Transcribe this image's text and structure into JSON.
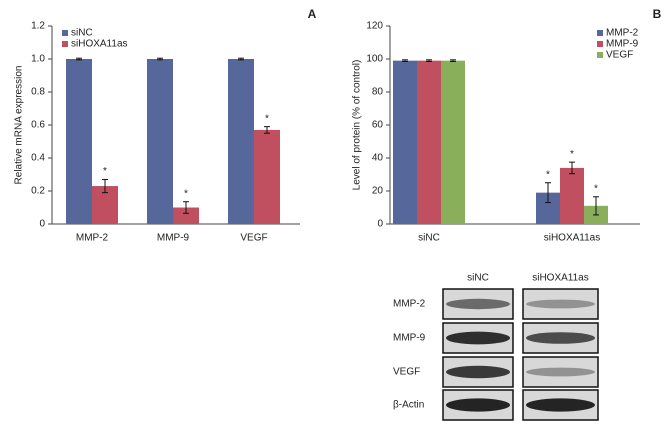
{
  "chart_data": [
    {
      "type": "bar",
      "panel": "A",
      "ylabel": "Relative mRNA expression",
      "categories": [
        "MMP-2",
        "MMP-9",
        "VEGF"
      ],
      "series": [
        {
          "name": "siNC",
          "color": "#56679b",
          "values": [
            1,
            1,
            1
          ],
          "errors": [
            0.005,
            0.005,
            0.005
          ]
        },
        {
          "name": "siHOXA11as",
          "color": "#c0505f",
          "values": [
            0.23,
            0.1,
            0.57
          ],
          "errors": [
            0.04,
            0.035,
            0.02
          ],
          "annotations": [
            "*",
            "*",
            "*"
          ]
        }
      ],
      "ylim": [
        0,
        1.2
      ],
      "yticks": [
        0,
        0.2,
        0.4,
        0.6,
        0.8,
        {
          "value": 1,
          "label": "1.0"
        },
        1.2
      ],
      "legend": "upper left",
      "grid": false
    },
    {
      "type": "bar",
      "panel": "B",
      "ylabel": "Level of protein (% of control)",
      "categories": [
        "siNC",
        "siHOXA11as"
      ],
      "series": [
        {
          "name": "MMP-2",
          "color": "#56679b",
          "values": [
            99,
            19
          ],
          "errors": [
            0.5,
            6
          ],
          "annotations": [
            null,
            "*"
          ]
        },
        {
          "name": "MMP-9",
          "color": "#c0505f",
          "values": [
            99,
            34
          ],
          "errors": [
            0.5,
            3.5
          ],
          "annotations": [
            null,
            "*"
          ]
        },
        {
          "name": "VEGF",
          "color": "#8aaf5a",
          "values": [
            99,
            11
          ],
          "errors": [
            0.5,
            5.5
          ],
          "annotations": [
            null,
            "*"
          ]
        }
      ],
      "ylim": [
        0,
        120
      ],
      "yticks": [
        0,
        20,
        40,
        60,
        80,
        100,
        120
      ],
      "legend": "upper right",
      "grid": false
    }
  ],
  "blot": {
    "columns": [
      "siNC",
      "siHOXA11as"
    ],
    "rows": [
      "MMP-2",
      "MMP-9",
      "VEGF",
      "β-Actin"
    ]
  }
}
